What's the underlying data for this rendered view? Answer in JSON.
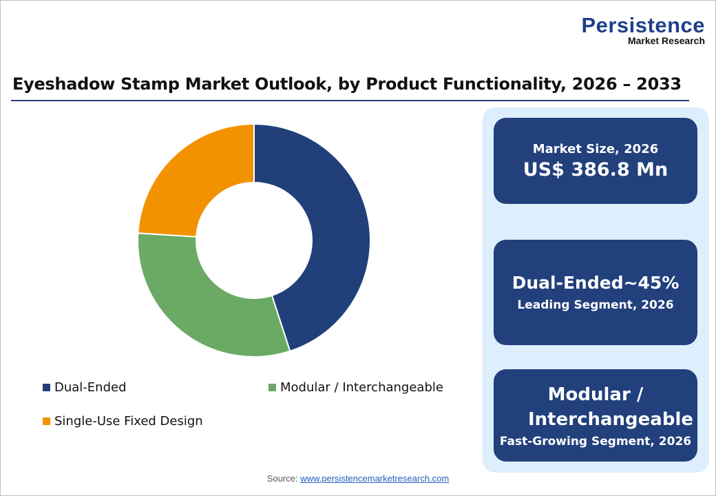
{
  "logo": {
    "line1": "Persistence",
    "line2": "Market Research"
  },
  "chart_data": {
    "type": "pie",
    "title": "Eyeshadow Stamp Market Outlook, by Product Functionality, 2026 – 2033",
    "categories": [
      "Dual-Ended",
      "Modular / Interchangeable",
      "Single-Use Fixed Design"
    ],
    "values": [
      45,
      31,
      24
    ],
    "unit": "%",
    "colors": [
      "#21407a",
      "#6aaa64",
      "#f39200"
    ],
    "donut": true,
    "legend_placement": "bottom"
  },
  "cards": [
    {
      "label": "Market Size, 2026",
      "value": "US$ 386.8 Mn"
    },
    {
      "value": "Dual-Ended~45%",
      "label": "Leading Segment, 2026"
    },
    {
      "value": "Modular / Interchangeable",
      "label": "Fast-Growing Segment, 2026"
    }
  ],
  "source": {
    "label": "Source:",
    "link": "www.persistencemarketresearch.com"
  }
}
